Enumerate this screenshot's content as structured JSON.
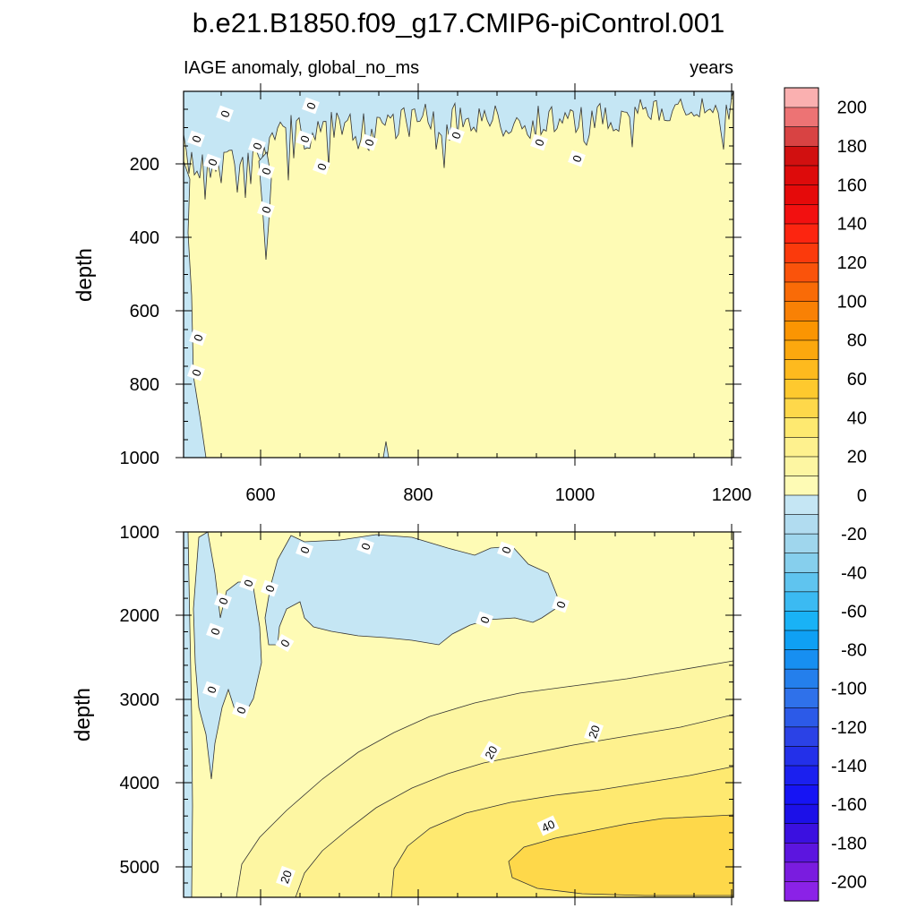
{
  "title": "b.e21.B1850.f09_g17.CMIP6-piControl.001",
  "subtitle_left": "IAGE anomaly, global_no_ms",
  "subtitle_right": "years",
  "colors": {
    "positive": [
      "#fefbb5",
      "#fdf6a2",
      "#fef18e",
      "#fee970",
      "#fed84a",
      "#fec92e",
      "#feba1e",
      "#fca80e",
      "#fb9502",
      "#f98105",
      "#f96b07",
      "#fa530b",
      "#fb3a0c",
      "#fc2510",
      "#f21010",
      "#e50a0a",
      "#dd0b0b",
      "#d11010",
      "#d84343",
      "#ed7374",
      "#fab0b0"
    ],
    "negative": [
      "#c5e6f4",
      "#b1dcf0",
      "#9fd6ed",
      "#86cfed",
      "#5fc4ef",
      "#3bbaf2",
      "#19b2f6",
      "#0fa0f4",
      "#178ff1",
      "#247fec",
      "#2f71ea",
      "#2c5ae8",
      "#2b42e6",
      "#2330e9",
      "#1b20ef",
      "#1614f4",
      "#1c10e8",
      "#3b10e0",
      "#5c15df",
      "#7a1cdf",
      "#8b22e7"
    ]
  },
  "colorbar": {
    "labels": [
      "200",
      "180",
      "160",
      "140",
      "120",
      "100",
      "80",
      "60",
      "40",
      "20",
      "0",
      "-20",
      "-40",
      "-60",
      "-80",
      "-100",
      "-120",
      "-140",
      "-160",
      "-180",
      "-200"
    ]
  },
  "chart_data": [
    {
      "type": "heatmap",
      "panel": "upper",
      "ylabel": "depth",
      "xlabel": "",
      "xlim": [
        500,
        1200
      ],
      "ylim": [
        1000,
        0
      ],
      "x_ticks": [
        "600",
        "800",
        "1000",
        "1200"
      ],
      "y_ticks": [
        "200",
        "400",
        "600",
        "800",
        "1000"
      ],
      "contour_levels": [
        -20,
        0,
        20,
        40
      ],
      "contour_labels": [
        "0",
        "0",
        "0",
        "0",
        "0",
        "0",
        "0",
        "0",
        "0",
        "0",
        "0",
        "0",
        "0",
        "0",
        "0"
      ],
      "anomaly_range_years": [
        -20,
        20
      ]
    },
    {
      "type": "heatmap",
      "panel": "lower",
      "ylabel": "depth",
      "xlabel": "",
      "xlim": [
        500,
        1200
      ],
      "ylim": [
        5375,
        1000
      ],
      "x_ticks": [],
      "y_ticks": [
        "1000",
        "2000",
        "3000",
        "4000",
        "5000"
      ],
      "contour_levels": [
        0,
        20,
        40
      ],
      "contour_labels": [
        "0",
        "0",
        "0",
        "0",
        "0",
        "0",
        "0",
        "0",
        "0",
        "0",
        "0",
        "0",
        "20",
        "20",
        "20",
        "40"
      ],
      "anomaly_range_years": [
        -20,
        60
      ]
    }
  ]
}
